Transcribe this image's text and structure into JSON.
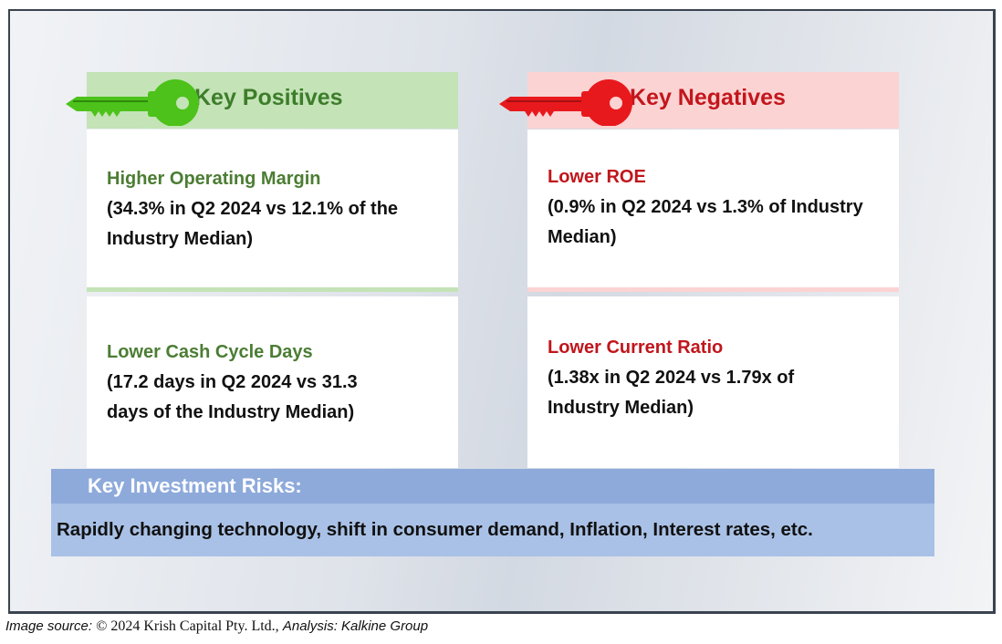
{
  "positives": {
    "header": "Key Positives",
    "accent_color": "#4cc21a",
    "items": [
      {
        "title": "Higher Operating Margin",
        "body": "(34.3% in Q2 2024 vs 12.1% of the Industry Median)"
      },
      {
        "title": "Lower Cash Cycle Days",
        "body": "(17.2 days in Q2 2024 vs 31.3 days of the Industry Median)"
      }
    ]
  },
  "negatives": {
    "header": "Key Negatives",
    "accent_color": "#e8191d",
    "items": [
      {
        "title": "Lower ROE",
        "body": "(0.9% in Q2 2024 vs 1.3% of Industry Median)"
      },
      {
        "title": "Lower Current Ratio",
        "body": "(1.38x in Q2 2024 vs 1.79x of Industry Median)"
      }
    ]
  },
  "risks": {
    "header": "Key Investment Risks:",
    "body": "Rapidly changing technology, shift in consumer demand, Inflation, Interest rates, etc."
  },
  "source": {
    "label": "Image source:",
    "copyright": "© 2024 Krish Capital Pty. Ltd.,",
    "analysis": "Analysis: Kalkine Group"
  },
  "icons": {
    "positives": "green-key-icon",
    "negatives": "red-key-icon"
  }
}
